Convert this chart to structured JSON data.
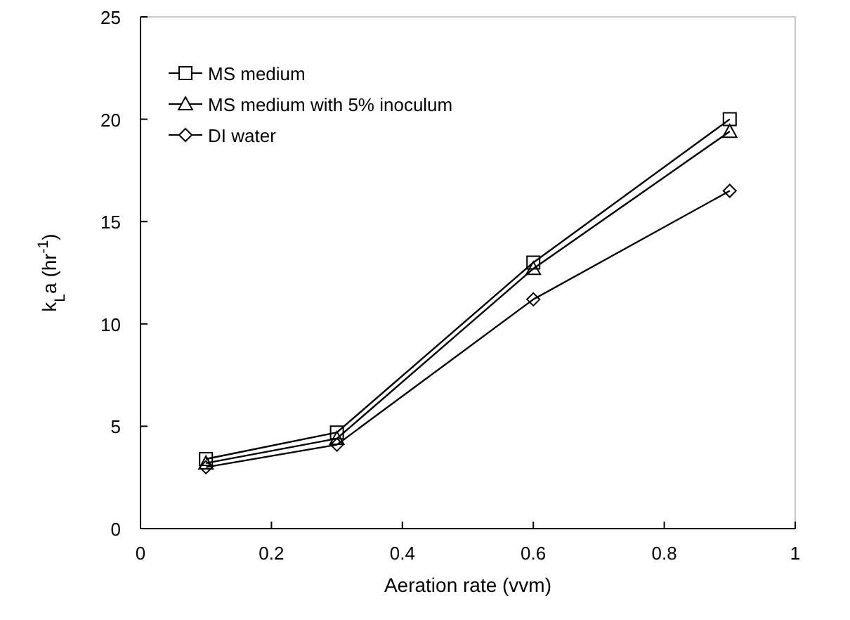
{
  "chart_data": {
    "type": "line",
    "xlabel": "Aeration rate  (vvm)",
    "ylabel": "k$_{L}$a  (hr$^{-1}$)",
    "xlim": [
      0,
      1
    ],
    "xticks": [
      0,
      0.2,
      0.4,
      0.6,
      0.8,
      1
    ],
    "ylim": [
      0,
      25
    ],
    "yticks": [
      0,
      5,
      10,
      15,
      20,
      25
    ],
    "x": [
      0.1,
      0.3,
      0.6,
      0.9
    ],
    "grid": false,
    "legend": "top left",
    "line_style": "solid",
    "series": [
      {
        "name": "MS medium",
        "color": "#000000",
        "marker": "square",
        "values": [
          3.4,
          4.7,
          13.0,
          20.0
        ]
      },
      {
        "name": "MS medium with 5% inoculum",
        "color": "#000000",
        "marker": "triangle",
        "values": [
          3.2,
          4.4,
          12.7,
          19.4
        ]
      },
      {
        "name": "DI water",
        "color": "#000000",
        "marker": "diamond",
        "values": [
          3.0,
          4.1,
          11.2,
          16.5
        ]
      }
    ]
  }
}
